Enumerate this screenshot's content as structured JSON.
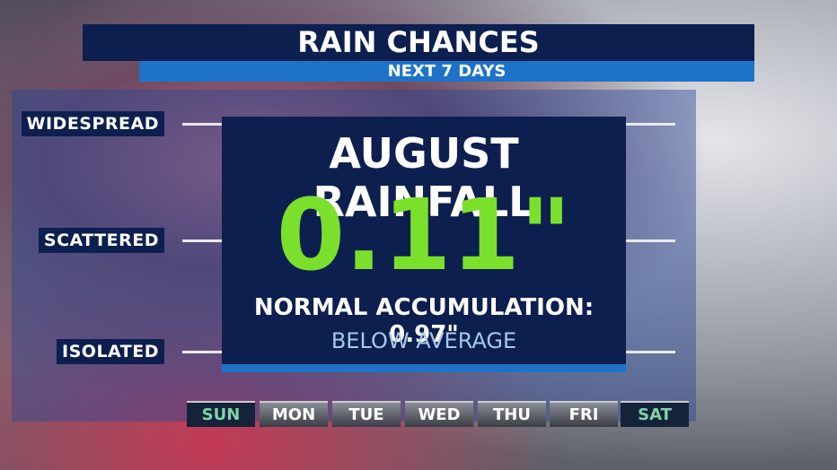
{
  "header": {
    "title": "RAIN CHANCES",
    "subtitle": "NEXT 7 DAYS"
  },
  "levels": [
    "WIDESPREAD",
    "SCATTERED",
    "ISOLATED"
  ],
  "days": [
    "SUN",
    "MON",
    "TUE",
    "WED",
    "THU",
    "FRI",
    "SAT"
  ],
  "overlay": {
    "title": "AUGUST RAINFALL",
    "value": "0.11\"",
    "normal": "NORMAL ACCUMULATION: 0.97\"",
    "note": "BELOW AVERAGE"
  }
}
